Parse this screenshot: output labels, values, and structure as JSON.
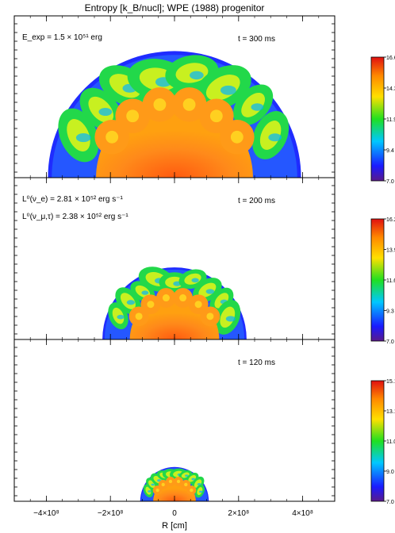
{
  "figure": {
    "title": "Entropy [k_B/nucl]; WPE (1988) progenitor",
    "xlabel": "R [cm]",
    "x_ticks": [
      {
        "value": -400000000,
        "label": "−4×10⁸"
      },
      {
        "value": -200000000,
        "label": "−2×10⁸"
      },
      {
        "value": 0,
        "label": "0"
      },
      {
        "value": 200000000,
        "label": "2×10⁸"
      },
      {
        "value": 400000000,
        "label": "4×10⁸"
      }
    ],
    "x_range": [
      -500000000,
      500000000
    ]
  },
  "panels": [
    {
      "time_label": "t = 300 ms",
      "annotation_lines": [
        "E_exp = 1.5 × 10⁵¹ erg"
      ],
      "shell_radius": 395000000,
      "colorbar_ticks": [
        "16.6",
        "14.3",
        "11.9",
        "9.4",
        "7.0"
      ]
    },
    {
      "time_label": "t = 200 ms",
      "annotation_lines": [
        "L⁰(ν_e) = 2.81 × 10⁵² erg s⁻¹",
        "L⁰(ν_μ,τ) = 2.38 × 10⁵² erg s⁻¹"
      ],
      "shell_radius": 225000000,
      "colorbar_ticks": [
        "16.2",
        "13.9",
        "11.6",
        "9.3",
        "7.0"
      ]
    },
    {
      "time_label": "t = 120 ms",
      "annotation_lines": [],
      "shell_radius": 107000000,
      "colorbar_ticks": [
        "15.1",
        "13.1",
        "11.0",
        "9.0",
        "7.0"
      ]
    }
  ],
  "colors": {
    "stops": [
      "#5a1a8a",
      "#1a1aff",
      "#00c8ff",
      "#20e020",
      "#ffe000",
      "#ff8800",
      "#e01010"
    ],
    "outer_shell": "#1a1aff",
    "inner_core": "#ff8a1a"
  }
}
